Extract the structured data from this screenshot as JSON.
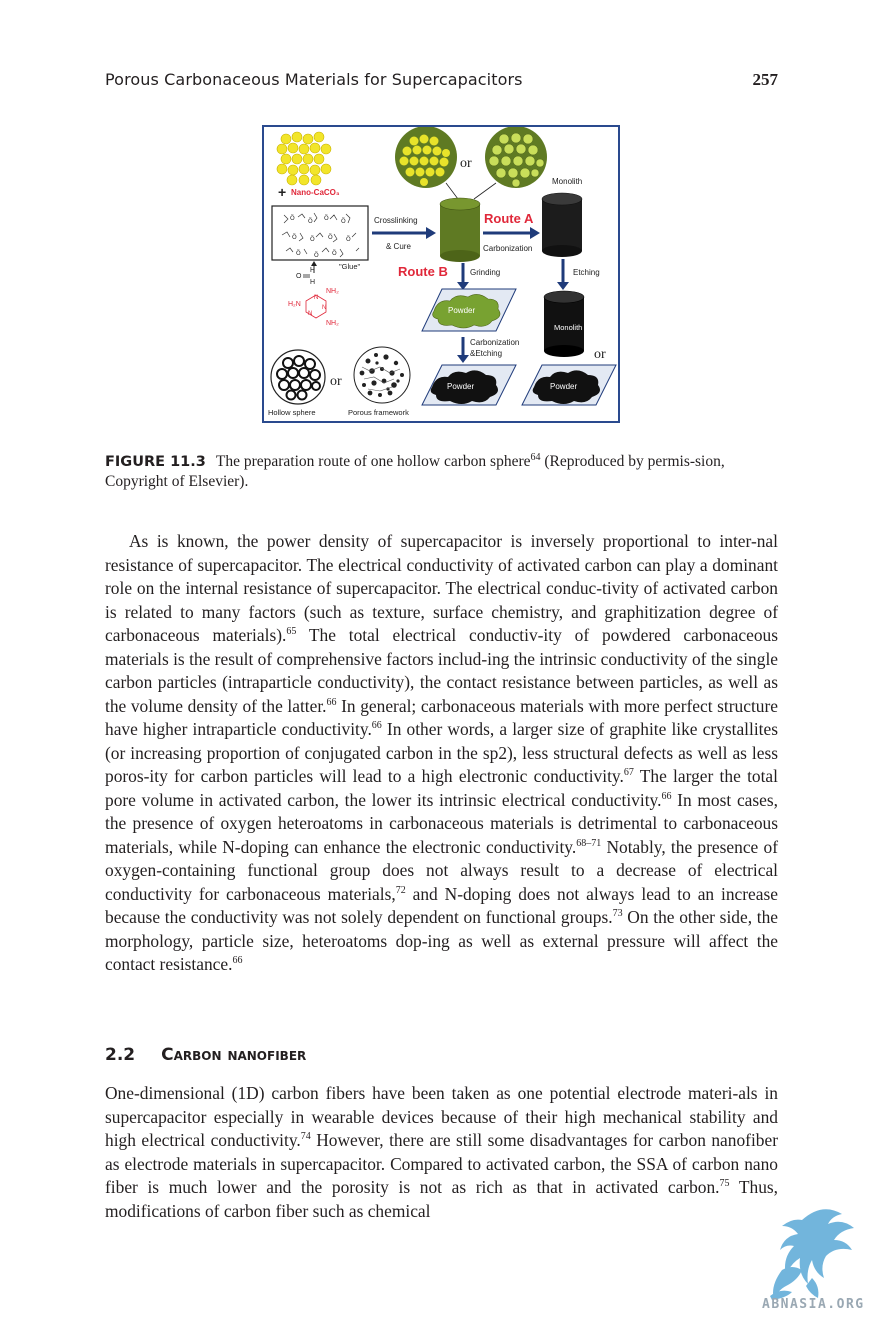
{
  "header": {
    "running_title": "Porous Carbonaceous Materials for Supercapacitors",
    "page_number": "257"
  },
  "figure": {
    "labels": {
      "nano_caco3": "Nano-CaCO₃",
      "plus": "+",
      "glue": "\"Glue\"",
      "or_top": "or",
      "monolith_top": "Monolith",
      "crosslinking": "Crosslinking",
      "cure": "& Cure",
      "route_a": "Route A",
      "carbonization": "Carbonization",
      "route_b": "Route B",
      "grinding": "Grinding",
      "etching": "Etching",
      "powder_green": "Powder",
      "monolith_mid": "Monolith",
      "carbonization_etching_1": "Carbonization",
      "carbonization_etching_2": "&Etching",
      "or_right": "or",
      "or_bottom": "or",
      "powder_black_left": "Powder",
      "powder_black_right": "Powder",
      "hollow_sphere": "Hollow sphere",
      "porous_framework": "Porous framework"
    }
  },
  "caption": {
    "label": "FIGURE 11.3",
    "text_before_ref": "The preparation route of one hollow carbon sphere",
    "ref": "64",
    "text_after_ref": " (Reproduced by permis-sion, Copyright of Elsevier)."
  },
  "paragraph1": [
    {
      "t": "As is known, the power density of supercapacitor is inversely proportional to inter-nal resistance of supercapacitor. The electrical conductivity of activated carbon can play a dominant role on the internal resistance of supercapacitor. The electrical conduc-tivity of activated carbon is related to many factors (such as texture, surface chemistry, and graphitization degree of carbonaceous materials)."
    },
    {
      "s": "65"
    },
    {
      "t": " The total electrical conductiv-ity of powdered carbonaceous materials is the result of comprehensive factors includ-ing the intrinsic conductivity of the single carbon particles (intraparticle conductivity), the contact resistance between particles, as well as the volume density of the latter."
    },
    {
      "s": "66"
    },
    {
      "t": " In general; carbonaceous materials with more perfect structure have higher intraparticle conductivity."
    },
    {
      "s": "66"
    },
    {
      "t": " In other words, a larger size of graphite like crystallites (or increasing proportion of conjugated carbon in the sp2), less structural defects as well as less poros-ity for carbon particles will lead to a high electronic conductivity."
    },
    {
      "s": "67"
    },
    {
      "t": " The larger the total pore volume in activated carbon, the lower its intrinsic electrical conductivity."
    },
    {
      "s": "66"
    },
    {
      "t": " In most cases, the presence of oxygen heteroatoms in carbonaceous materials is detrimental to carbonaceous materials, while N-doping can enhance the electronic conductivity."
    },
    {
      "s": "68–71"
    },
    {
      "t": " Notably, the presence of oxygen-containing functional group does not always result to a decrease of electrical conductivity for carbonaceous materials,"
    },
    {
      "s": "72"
    },
    {
      "t": " and N-doping does not always lead to an increase because the conductivity was not solely dependent on functional groups."
    },
    {
      "s": "73"
    },
    {
      "t": " On the other side, the morphology, particle size, heteroatoms dop-ing as well as external pressure will affect the contact resistance."
    },
    {
      "s": "66"
    }
  ],
  "section": {
    "number": "2.2",
    "title": "Carbon nanofiber"
  },
  "paragraph2": [
    {
      "t": "One-dimensional (1D) carbon fibers have been taken as one potential electrode materi-als in supercapacitor especially in wearable devices because of their high mechanical stability and high electrical conductivity."
    },
    {
      "s": "74"
    },
    {
      "t": " However, there are still some disadvantages for carbon nanofiber as electrode materials in supercapacitor. Compared to activated carbon, the SSA of carbon nano fiber is much lower and the porosity is not as rich as that in activated carbon."
    },
    {
      "s": "75"
    },
    {
      "t": " Thus, modifications of carbon fiber such as chemical"
    }
  ],
  "watermark": {
    "text": "ABNASIA.ORG",
    "color": "#5aa9d6"
  }
}
